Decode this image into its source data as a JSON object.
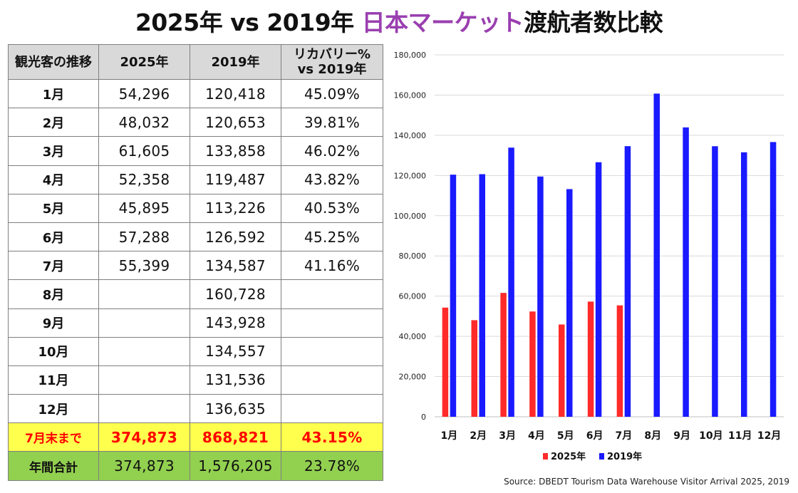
{
  "title": {
    "part1": "2025年 vs 2019年 ",
    "highlight": "日本マーケット",
    "part2": "渡航者数比較",
    "highlight_color": "#9a3fb0"
  },
  "table": {
    "headers": [
      "観光客の推移",
      "2025年",
      "2019年",
      "リカバリー% vs 2019年"
    ],
    "rows": [
      {
        "label": "1月",
        "y2025": "54,296",
        "y2019": "120,418",
        "recovery": "45.09%"
      },
      {
        "label": "2月",
        "y2025": "48,032",
        "y2019": "120,653",
        "recovery": "39.81%"
      },
      {
        "label": "3月",
        "y2025": "61,605",
        "y2019": "133,858",
        "recovery": "46.02%"
      },
      {
        "label": "4月",
        "y2025": "52,358",
        "y2019": "119,487",
        "recovery": "43.82%"
      },
      {
        "label": "5月",
        "y2025": "45,895",
        "y2019": "113,226",
        "recovery": "40.53%"
      },
      {
        "label": "6月",
        "y2025": "57,288",
        "y2019": "126,592",
        "recovery": "45.25%"
      },
      {
        "label": "7月",
        "y2025": "55,399",
        "y2019": "134,587",
        "recovery": "41.16%"
      },
      {
        "label": "8月",
        "y2025": "",
        "y2019": "160,728",
        "recovery": ""
      },
      {
        "label": "9月",
        "y2025": "",
        "y2019": "143,928",
        "recovery": ""
      },
      {
        "label": "10月",
        "y2025": "",
        "y2019": "134,557",
        "recovery": ""
      },
      {
        "label": "11月",
        "y2025": "",
        "y2019": "131,536",
        "recovery": ""
      },
      {
        "label": "12月",
        "y2025": "",
        "y2019": "136,635",
        "recovery": ""
      }
    ],
    "ytd": {
      "label": "7月末まで",
      "y2025": "374,873",
      "y2019": "868,821",
      "recovery": "43.15%"
    },
    "total": {
      "label": "年間合計",
      "y2025": "374,873",
      "y2019": "1,576,205",
      "recovery": "23.78%"
    },
    "colors": {
      "header_bg": "#d9d9d9",
      "ytd_bg": "#ffff4d",
      "ytd_text": "#ff0000",
      "total_bg": "#92d050"
    }
  },
  "chart_data": {
    "type": "bar",
    "categories": [
      "1月",
      "2月",
      "3月",
      "4月",
      "5月",
      "6月",
      "7月",
      "8月",
      "9月",
      "10月",
      "11月",
      "12月"
    ],
    "series": [
      {
        "name": "2025年",
        "color": "#ff2a2a",
        "values": [
          54296,
          48032,
          61605,
          52358,
          45895,
          57288,
          55399,
          null,
          null,
          null,
          null,
          null
        ]
      },
      {
        "name": "2019年",
        "color": "#1a1aff",
        "values": [
          120418,
          120653,
          133858,
          119487,
          113226,
          126592,
          134587,
          160728,
          143928,
          134557,
          131536,
          136635
        ]
      }
    ],
    "ylim": [
      0,
      180000
    ],
    "yticks": [
      0,
      20000,
      40000,
      60000,
      80000,
      100000,
      120000,
      140000,
      160000,
      180000
    ],
    "ytick_labels": [
      "0",
      "20,000",
      "40,000",
      "60,000",
      "80,000",
      "100,000",
      "120,000",
      "140,000",
      "160,000",
      "180,000"
    ],
    "grid": true,
    "legend_position": "bottom"
  },
  "source": "Source: DBEDT Tourism Data Warehouse Visitor Arrival 2025, 2019"
}
